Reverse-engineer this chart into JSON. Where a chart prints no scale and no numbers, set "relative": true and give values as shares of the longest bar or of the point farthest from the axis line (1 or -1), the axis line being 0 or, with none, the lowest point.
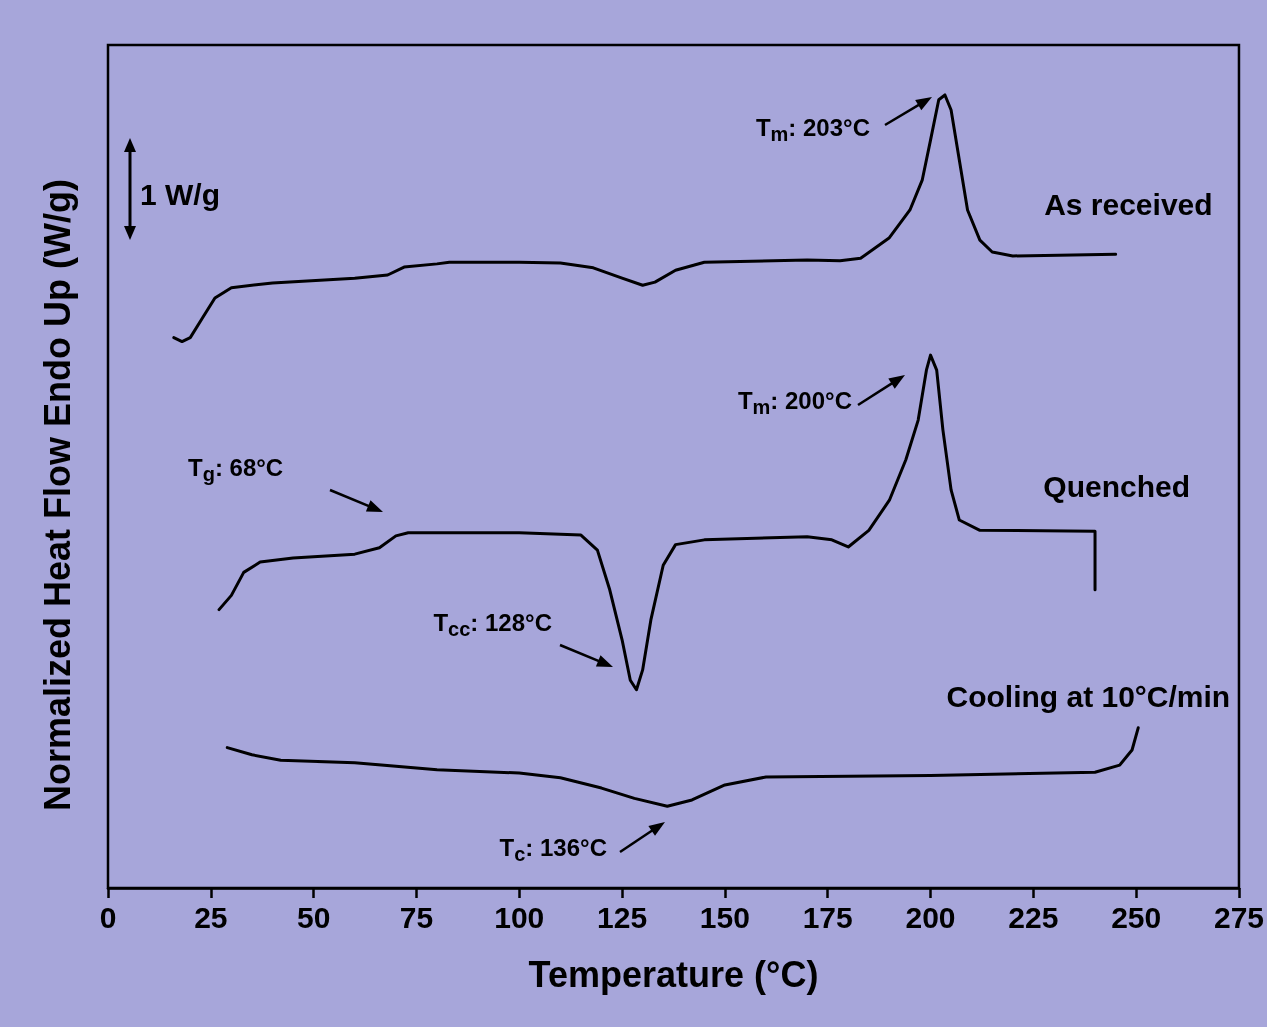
{
  "chart_data": {
    "type": "line",
    "relative": true,
    "marker": "none",
    "xlabel": "Temperature (°C)",
    "ylabel": "Normalized Heat Flow Endo Up (W/g)",
    "xlim": [
      0,
      275
    ],
    "xticks": [
      0,
      25,
      50,
      75,
      100,
      125,
      150,
      175,
      200,
      225,
      250,
      275
    ],
    "series": [
      {
        "name": "As received",
        "color": "#000000",
        "x": [
          16,
          18,
          20,
          23,
          26,
          30,
          40,
          60,
          68,
          72,
          80,
          83,
          100,
          110,
          118,
          125,
          130,
          133,
          138,
          145,
          170,
          178,
          183,
          190,
          195,
          198,
          200,
          202,
          203.5,
          205,
          207,
          209,
          212,
          215,
          220,
          245
        ],
        "values": [
          0.694,
          0.689,
          0.694,
          0.719,
          0.744,
          0.757,
          0.763,
          0.769,
          0.773,
          0.783,
          0.787,
          0.789,
          0.789,
          0.788,
          0.782,
          0.769,
          0.76,
          0.764,
          0.779,
          0.789,
          0.792,
          0.791,
          0.794,
          0.82,
          0.855,
          0.893,
          0.943,
          0.994,
          1,
          0.981,
          0.918,
          0.855,
          0.817,
          0.802,
          0.797,
          0.799
        ]
      },
      {
        "name": "Quenched",
        "color": "#000000",
        "x": [
          27,
          30,
          33,
          37,
          45,
          60,
          66,
          70,
          73,
          100,
          115,
          119,
          122,
          125,
          127,
          128.5,
          130,
          132,
          135,
          138,
          145,
          170,
          176,
          180,
          185,
          190,
          194,
          197,
          199,
          200,
          201.5,
          203,
          205,
          207,
          212,
          240,
          240
        ],
        "values": [
          0.351,
          0.369,
          0.398,
          0.411,
          0.416,
          0.421,
          0.429,
          0.444,
          0.448,
          0.448,
          0.445,
          0.426,
          0.376,
          0.313,
          0.262,
          0.25,
          0.275,
          0.338,
          0.407,
          0.433,
          0.439,
          0.443,
          0.439,
          0.43,
          0.451,
          0.489,
          0.54,
          0.59,
          0.653,
          0.672,
          0.653,
          0.578,
          0.502,
          0.464,
          0.451,
          0.45,
          0.376
        ]
      },
      {
        "name": "Cooling at 10°C/min",
        "color": "#000000",
        "x": [
          29,
          35,
          42,
          60,
          80,
          100,
          110,
          120,
          128,
          136,
          142,
          150,
          160,
          200,
          240,
          246,
          249,
          250.5
        ],
        "values": [
          0.177,
          0.168,
          0.161,
          0.158,
          0.149,
          0.145,
          0.139,
          0.126,
          0.113,
          0.103,
          0.111,
          0.13,
          0.14,
          0.142,
          0.146,
          0.155,
          0.174,
          0.202
        ]
      }
    ],
    "annotations": [
      "T$_{m}$: 203°C",
      "T$_{m}$: 200°C",
      "T$_{g}$: 68°C",
      "T$_{cc}$: 128°C",
      "T$_{c}$: 136°C",
      "1 W/g"
    ]
  }
}
